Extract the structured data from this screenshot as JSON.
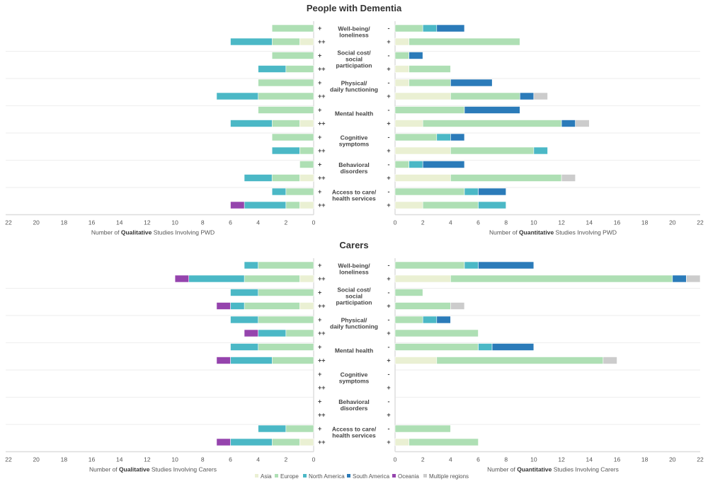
{
  "regions": [
    "Asia",
    "Europe",
    "North America",
    "South America",
    "Oceania",
    "Multiple regions"
  ],
  "colors": {
    "Asia": "#eaf0d3",
    "Europe": "#aedfb4",
    "North America": "#4bb8c6",
    "South America": "#2b7bb9",
    "Oceania": "#9544ad",
    "Multiple regions": "#cccccc"
  },
  "legend": [
    {
      "label": "Asia"
    },
    {
      "label": "Europe"
    },
    {
      "label": "North America"
    },
    {
      "label": "South America"
    },
    {
      "label": "Oceania"
    },
    {
      "label": "Multiple regions"
    }
  ],
  "chart_data": [
    {
      "type": "bar",
      "orientation": "horizontal-stacked-diverging",
      "title": "People with Dementia",
      "categories": [
        "Well-being/ loneliness",
        "Social cost/ social participation",
        "Physical/ daily functioning",
        "Mental health",
        "Cognitive symptoms",
        "Behavioral disorders",
        "Access to care/ health services"
      ],
      "category_lines": [
        [
          "Well-being/",
          "loneliness"
        ],
        [
          "Social cost/",
          "social",
          "participation"
        ],
        [
          "Physical/",
          "daily functioning"
        ],
        [
          "Mental health"
        ],
        [
          "Cognitive",
          "symptoms"
        ],
        [
          "Behavioral",
          "disorders"
        ],
        [
          "Access to care/",
          "health services"
        ]
      ],
      "left": {
        "xlabel_prefix": "Number of ",
        "xlabel_bold": "Qualitative",
        "xlabel_suffix": " Studies Involving PWD",
        "xlim": [
          0,
          22
        ],
        "ticks": [
          "22",
          "20",
          "18",
          "16",
          "14",
          "12",
          "10",
          "8",
          "6",
          "4",
          "2",
          "0"
        ],
        "row_signs": [
          "+",
          "++"
        ],
        "values": [
          [
            {
              "Europe": 3
            },
            {
              "Asia": 1,
              "Europe": 2,
              "North America": 3
            }
          ],
          [
            {
              "Europe": 3
            },
            {
              "Europe": 2,
              "North America": 2
            }
          ],
          [
            {
              "Europe": 4
            },
            {
              "Europe": 4,
              "North America": 3
            }
          ],
          [
            {
              "Europe": 4
            },
            {
              "Asia": 1,
              "Europe": 2,
              "North America": 3
            }
          ],
          [
            {
              "Europe": 3
            },
            {
              "Europe": 1,
              "North America": 2
            }
          ],
          [
            {
              "Europe": 1
            },
            {
              "Asia": 1,
              "Europe": 2,
              "North America": 2
            }
          ],
          [
            {
              "Europe": 2,
              "North America": 1
            },
            {
              "Asia": 1,
              "Europe": 1,
              "North America": 3,
              "Oceania": 1
            }
          ]
        ]
      },
      "right": {
        "xlabel_prefix": "Number of ",
        "xlabel_bold": "Quantitative",
        "xlabel_suffix": " Studies Involving PWD",
        "xlim": [
          0,
          22
        ],
        "ticks": [
          "0",
          "2",
          "4",
          "6",
          "8",
          "10",
          "12",
          "14",
          "16",
          "18",
          "20",
          "22"
        ],
        "row_signs": [
          "-",
          "+"
        ],
        "values": [
          [
            {
              "Europe": 2,
              "North America": 1,
              "South America": 2
            },
            {
              "Asia": 1,
              "Europe": 8
            }
          ],
          [
            {
              "Europe": 1,
              "South America": 1
            },
            {
              "Asia": 1,
              "Europe": 3
            }
          ],
          [
            {
              "Asia": 1,
              "Europe": 3,
              "South America": 3
            },
            {
              "Asia": 4,
              "Europe": 5,
              "South America": 1,
              "Multiple regions": 1
            }
          ],
          [
            {
              "Europe": 5,
              "South America": 4
            },
            {
              "Asia": 2,
              "Europe": 10,
              "South America": 1,
              "Multiple regions": 1
            }
          ],
          [
            {
              "Europe": 3,
              "North America": 1,
              "South America": 1
            },
            {
              "Asia": 4,
              "Europe": 6,
              "North America": 1
            }
          ],
          [
            {
              "Europe": 1,
              "North America": 1,
              "South America": 3
            },
            {
              "Asia": 4,
              "Europe": 8,
              "Multiple regions": 1
            }
          ],
          [
            {
              "Europe": 5,
              "North America": 1,
              "South America": 2
            },
            {
              "Asia": 2,
              "Europe": 4,
              "North America": 2
            }
          ]
        ]
      }
    },
    {
      "type": "bar",
      "orientation": "horizontal-stacked-diverging",
      "title": "Carers",
      "categories": [
        "Well-being/ loneliness",
        "Social cost/ social participation",
        "Physical/ daily functioning",
        "Mental health",
        "Cognitive symptoms",
        "Behavioral disorders",
        "Access to care/ health services"
      ],
      "category_lines": [
        [
          "Well-being/",
          "loneliness"
        ],
        [
          "Social cost/",
          "social",
          "participation"
        ],
        [
          "Physical/",
          "daily functioning"
        ],
        [
          "Mental health"
        ],
        [
          "Cognitive",
          "symptoms"
        ],
        [
          "Behavioral",
          "disorders"
        ],
        [
          "Access to care/",
          "health services"
        ]
      ],
      "left": {
        "xlabel_prefix": "Number of ",
        "xlabel_bold": "Qualitative",
        "xlabel_suffix": " Studies Involving Carers",
        "xlim": [
          0,
          22
        ],
        "ticks": [
          "22",
          "20",
          "18",
          "16",
          "14",
          "12",
          "10",
          "8",
          "6",
          "4",
          "2",
          "0"
        ],
        "row_signs": [
          "+",
          "++"
        ],
        "values": [
          [
            {
              "Europe": 4,
              "North America": 1
            },
            {
              "Asia": 1,
              "Europe": 4,
              "North America": 4,
              "Oceania": 1
            }
          ],
          [
            {
              "Europe": 4,
              "North America": 2
            },
            {
              "Asia": 1,
              "Europe": 4,
              "North America": 1,
              "Oceania": 1
            }
          ],
          [
            {
              "Europe": 4,
              "North America": 2
            },
            {
              "Europe": 2,
              "North America": 2,
              "Oceania": 1
            }
          ],
          [
            {
              "Europe": 4,
              "North America": 2
            },
            {
              "Europe": 3,
              "North America": 3,
              "Oceania": 1
            }
          ],
          [
            {},
            {}
          ],
          [
            {},
            {}
          ],
          [
            {
              "Europe": 2,
              "North America": 2
            },
            {
              "Asia": 1,
              "Europe": 2,
              "North America": 3,
              "Oceania": 1
            }
          ]
        ]
      },
      "right": {
        "xlabel_prefix": "Number of ",
        "xlabel_bold": "Quantitative",
        "xlabel_suffix": " Studies Involving Carers",
        "xlim": [
          0,
          22
        ],
        "ticks": [
          "0",
          "2",
          "4",
          "6",
          "8",
          "10",
          "12",
          "14",
          "16",
          "18",
          "20",
          "22"
        ],
        "row_signs": [
          "-",
          "+"
        ],
        "values": [
          [
            {
              "Europe": 5,
              "North America": 1,
              "South America": 4
            },
            {
              "Asia": 4,
              "Europe": 16,
              "South America": 1,
              "Multiple regions": 1
            }
          ],
          [
            {
              "Europe": 2
            },
            {
              "Europe": 4,
              "Multiple regions": 1
            }
          ],
          [
            {
              "Europe": 2,
              "North America": 1,
              "South America": 1
            },
            {
              "Europe": 6
            }
          ],
          [
            {
              "Europe": 6,
              "North America": 1,
              "South America": 3
            },
            {
              "Asia": 3,
              "Europe": 12,
              "Multiple regions": 1
            }
          ],
          [
            {},
            {}
          ],
          [
            {},
            {}
          ],
          [
            {
              "Europe": 4
            },
            {
              "Asia": 1,
              "Europe": 5
            }
          ]
        ]
      }
    }
  ]
}
